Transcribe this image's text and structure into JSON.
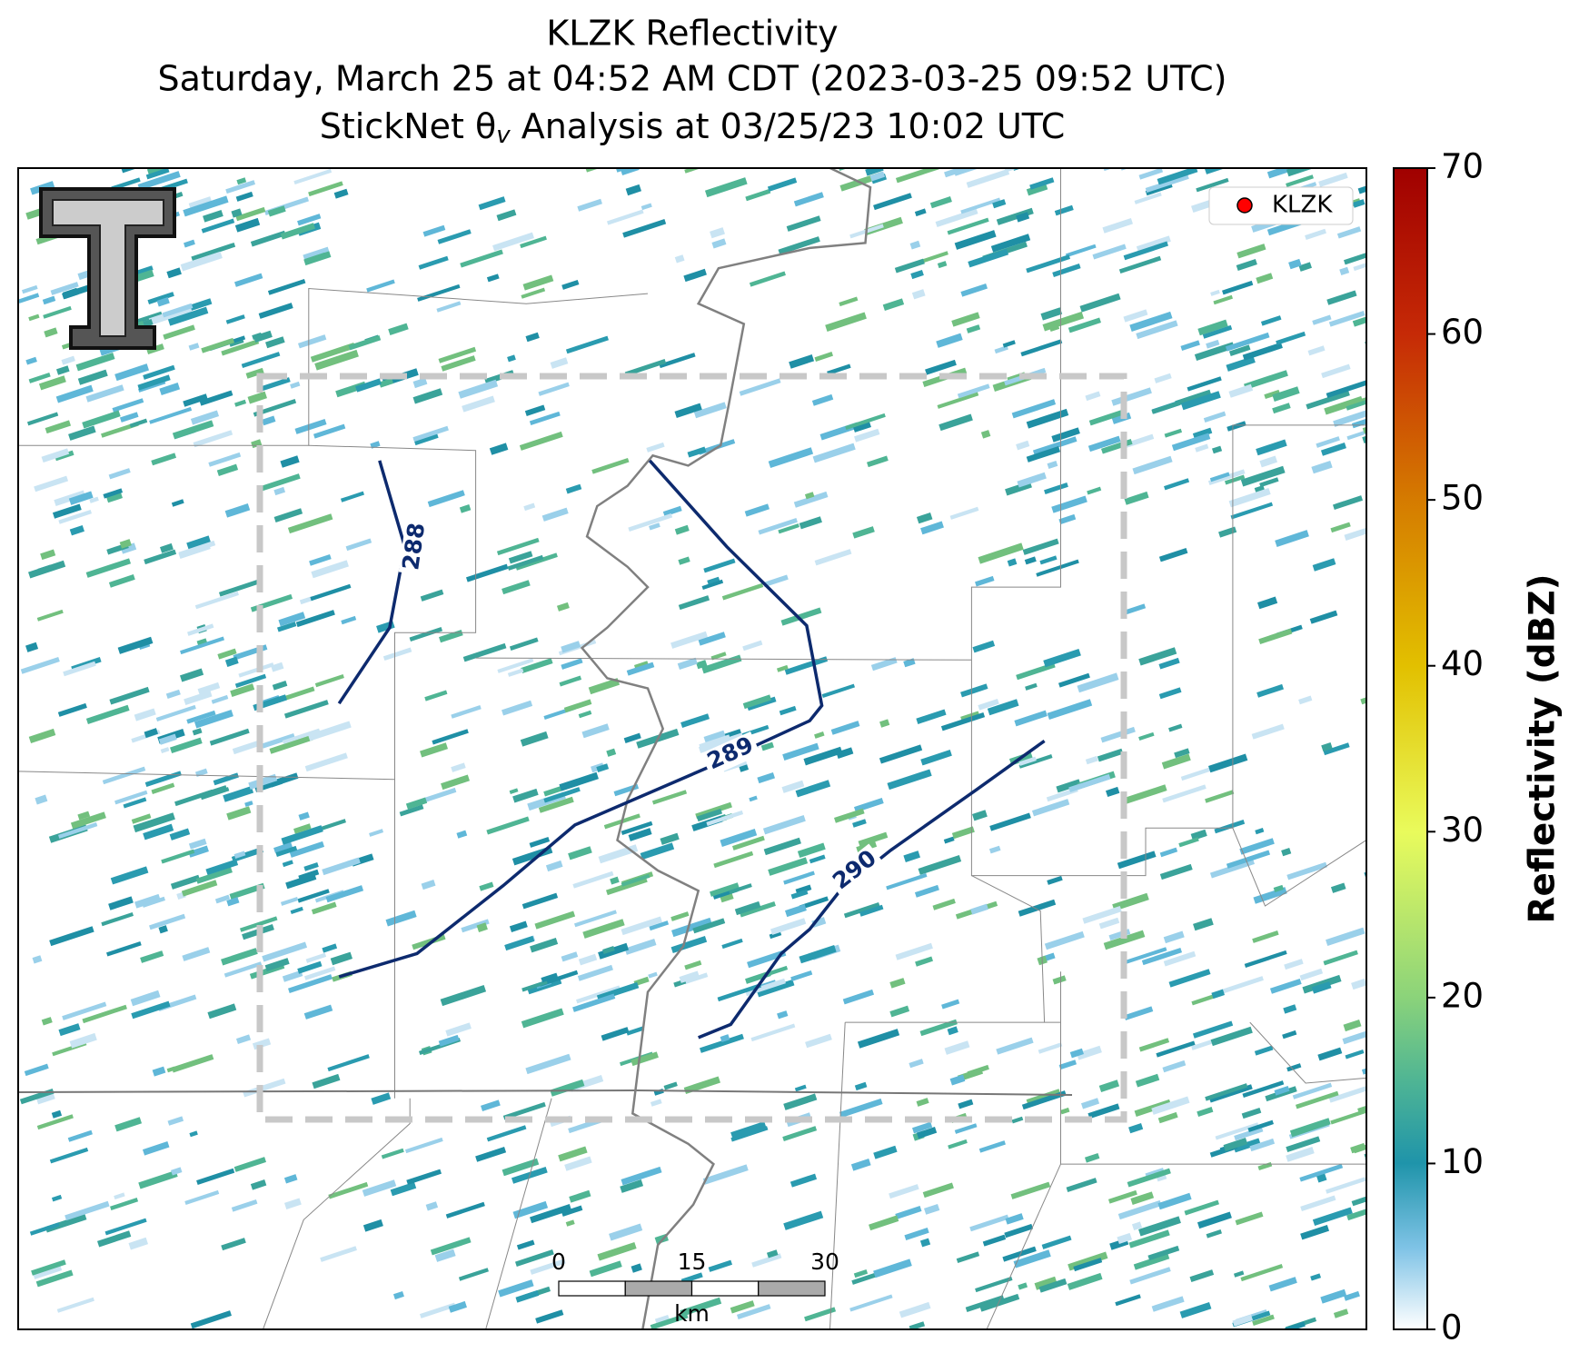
{
  "title": {
    "line1": "KLZK Reflectivity",
    "line2": "Saturday, March 25 at 04:52 AM CDT (2023-03-25 09:52 UTC)",
    "line3": {
      "prefix": "StickNet θ",
      "subscript": "v",
      "suffix": " Analysis at 03/25/23 10:02 UTC"
    }
  },
  "legend": {
    "label": "KLZK",
    "color": "#ff0000"
  },
  "contours": [
    {
      "level": 288,
      "label": "288"
    },
    {
      "level": 289,
      "label": "289"
    },
    {
      "level": 290,
      "label": "290"
    }
  ],
  "contour_color": "#0d2a6e",
  "scale_bar": {
    "ticks": [
      0,
      15,
      30
    ],
    "unit": "km"
  },
  "colorbar": {
    "label": "Reflectivity (dBZ)",
    "lim": [
      0,
      70
    ],
    "ticks": [
      0,
      10,
      20,
      30,
      40,
      50,
      60,
      70
    ]
  }
}
